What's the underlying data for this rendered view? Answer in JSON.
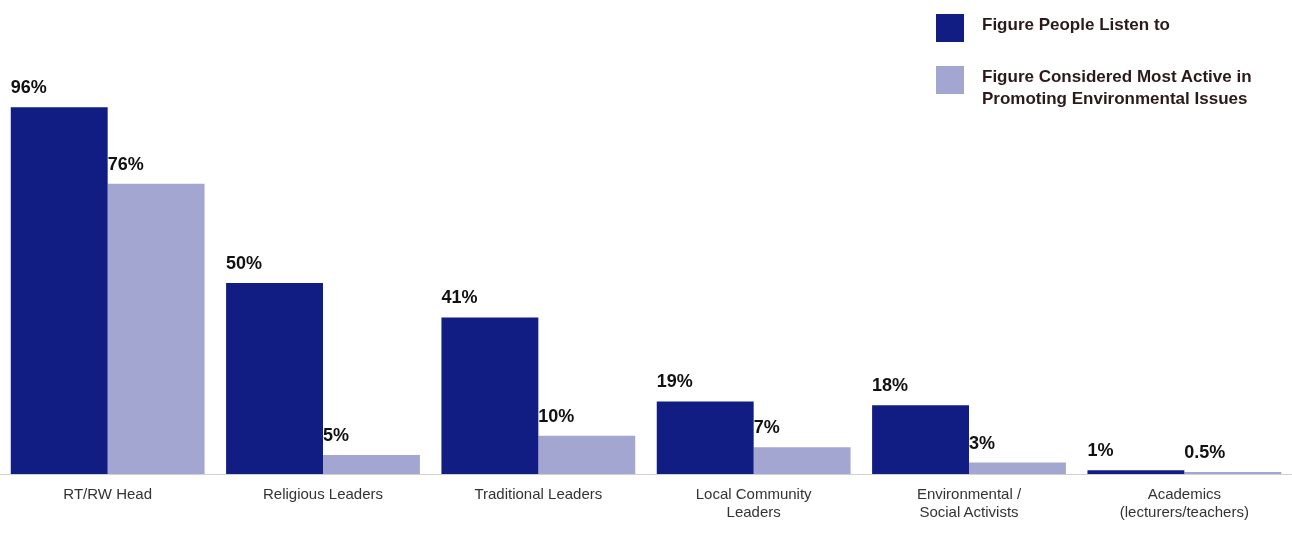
{
  "chart_data": {
    "type": "bar",
    "categories": [
      "RT/RW Head",
      "Religious Leaders",
      "Traditional Leaders",
      "Local Community Leaders",
      "Environmental / Social Activists",
      "Academics (lecturers/teachers)"
    ],
    "series": [
      {
        "name": "Figure People Listen to",
        "color": "#121d84",
        "values": [
          96,
          50,
          41,
          19,
          18,
          1
        ],
        "value_labels": [
          "96%",
          "50%",
          "41%",
          "19%",
          "18%",
          "1%"
        ]
      },
      {
        "name": "Figure Considered Most Active in Promoting Environmental Issues",
        "color": "#a3a6d0",
        "values": [
          76,
          5,
          10,
          7,
          3,
          0.5
        ],
        "value_labels": [
          "76%",
          "5%",
          "10%",
          "7%",
          "3%",
          "0.5%"
        ]
      }
    ],
    "legend": "top right",
    "grid": false
  }
}
